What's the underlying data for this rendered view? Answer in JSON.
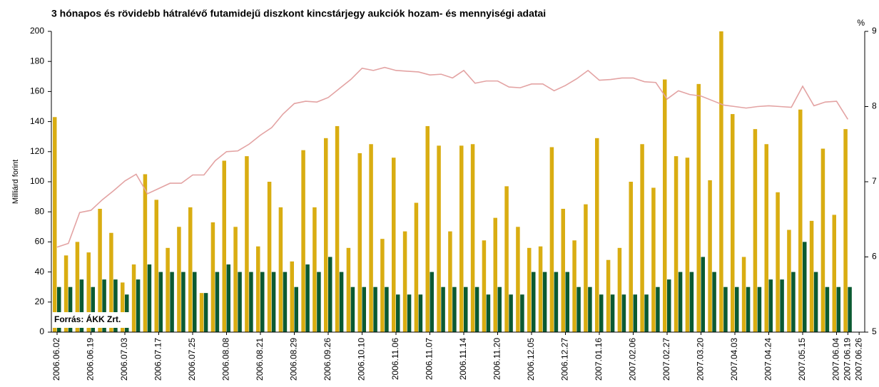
{
  "chart_data": {
    "type": "bar_line",
    "title": "3 hónapos és rövidebb hátralévő futamidejű diszkont kincstárjegy aukciók hozam- és mennyiségi adatai",
    "ylabel": "Milliárd forint",
    "y2label": "%",
    "annotation": "Forrás:  ÁKK Zrt.",
    "categories": [
      "2006.06.02",
      null,
      null,
      "2006.06.19",
      null,
      null,
      "2006.07.03",
      null,
      null,
      "2006.07.17",
      null,
      null,
      "2006.07.25",
      null,
      null,
      "2006.08.08",
      null,
      null,
      "2006.08.21",
      null,
      null,
      "2006.08.29",
      null,
      null,
      "2006.09.26",
      null,
      null,
      "2006.10.10",
      null,
      null,
      "2006.11.06",
      null,
      null,
      "2006.11.07",
      null,
      null,
      "2006.11.14",
      null,
      null,
      "2006.11.20",
      null,
      null,
      "2006.12.05",
      null,
      null,
      "2006.12.27",
      null,
      null,
      "2007.01.16",
      null,
      null,
      "2007.02.06",
      null,
      null,
      "2007.02.27",
      null,
      null,
      "2007.03.20",
      null,
      null,
      "2007.04.03",
      null,
      null,
      "2007.04.24",
      null,
      null,
      "2007.05.15",
      null,
      null,
      "2007.06.04",
      "2007.06.19",
      "2007.06.26"
    ],
    "series": [
      {
        "color": "#d9ad12",
        "values": [
          143,
          51,
          60,
          53,
          82,
          66,
          33,
          45,
          105,
          88,
          56,
          70,
          83,
          26,
          73,
          114,
          70,
          117,
          57,
          100,
          83,
          47,
          121,
          83,
          129,
          137,
          56,
          119,
          125,
          62,
          116,
          67,
          86,
          137,
          124,
          67,
          124,
          125,
          61,
          76,
          97,
          70,
          56,
          57,
          123,
          82,
          61,
          85,
          129,
          48,
          56,
          100,
          125,
          96,
          168,
          117,
          116,
          165,
          101,
          200,
          145,
          50,
          135,
          125,
          93,
          68,
          148,
          74,
          122,
          78,
          135,
          null
        ]
      },
      {
        "color": "#0b5a32",
        "values": [
          30,
          30,
          35,
          30,
          35,
          35,
          25,
          35,
          45,
          40,
          40,
          40,
          40,
          26,
          40,
          45,
          40,
          40,
          40,
          40,
          40,
          30,
          45,
          40,
          50,
          40,
          30,
          30,
          30,
          30,
          25,
          25,
          25,
          40,
          30,
          30,
          30,
          30,
          25,
          30,
          25,
          25,
          40,
          40,
          40,
          40,
          30,
          30,
          25,
          25,
          25,
          25,
          25,
          30,
          35,
          40,
          40,
          50,
          40,
          30,
          30,
          30,
          30,
          35,
          35,
          40,
          60,
          40,
          30,
          30,
          30,
          null
        ]
      },
      {
        "color": "#e3a3a3",
        "axis": "y2",
        "values": [
          6.13,
          6.18,
          6.59,
          6.62,
          6.76,
          6.88,
          7.01,
          7.1,
          6.84,
          6.91,
          6.98,
          6.98,
          7.09,
          7.09,
          7.28,
          7.4,
          7.41,
          7.5,
          7.62,
          7.72,
          7.9,
          8.04,
          8.07,
          8.06,
          8.12,
          8.24,
          8.36,
          8.51,
          8.48,
          8.52,
          8.48,
          8.47,
          8.46,
          8.42,
          8.43,
          8.38,
          8.48,
          8.31,
          8.34,
          8.34,
          8.26,
          8.25,
          8.3,
          8.3,
          8.21,
          8.28,
          8.37,
          8.48,
          8.35,
          8.36,
          8.38,
          8.38,
          8.33,
          8.32,
          8.1,
          8.21,
          8.16,
          8.14,
          8.08,
          8.02,
          8.0,
          7.98,
          8.0,
          8.01,
          8.0,
          7.99,
          8.27,
          8.01,
          8.06,
          8.07,
          7.83,
          null
        ]
      }
    ],
    "ylim": [
      0,
      200
    ],
    "yticks": [
      0,
      20,
      40,
      60,
      80,
      100,
      120,
      140,
      160,
      180,
      200
    ],
    "y2lim": [
      5,
      9
    ],
    "y2ticks": [
      5,
      6,
      7,
      8,
      9
    ]
  }
}
